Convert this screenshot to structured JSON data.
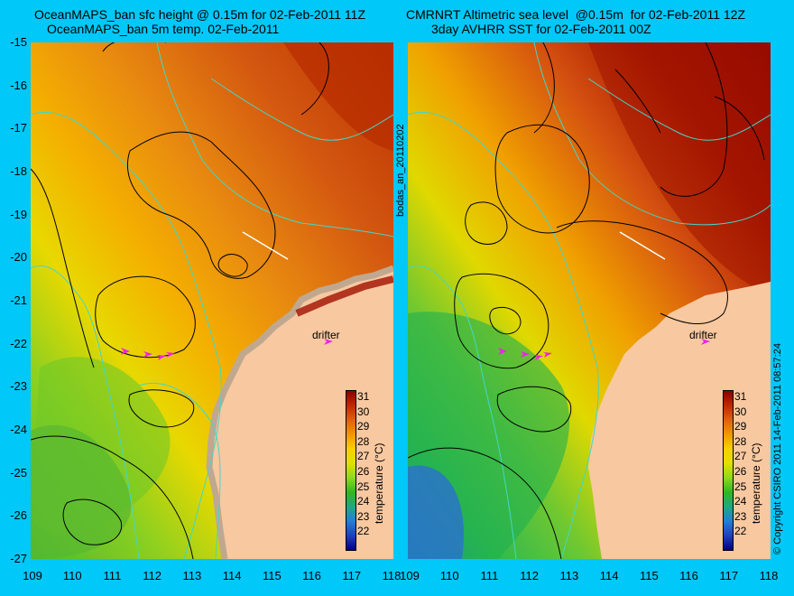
{
  "left_panel": {
    "title_line1": "OceanMAPS_ban sfc height @ 0.15m for 02-Feb-2011 11Z",
    "title_line2": "OceanMAPS_ban 5m temp. 02-Feb-2011",
    "drifter_label": "drifter"
  },
  "right_panel": {
    "title_line1": "CMRNRT Altimetric sea level  @0.15m  for 02-Feb-2011 12Z",
    "title_line2": "3day AVHRR SST for 02-Feb-2011 00Z",
    "drifter_label": "drifter"
  },
  "center_label": "bodas_an_20110202",
  "copyright": "© Copyright CSIRO 2011   14-Feb-2011 08:57:24",
  "axes": {
    "lat_ticks": [
      "-15",
      "-16",
      "-17",
      "-18",
      "-19",
      "-20",
      "-21",
      "-22",
      "-23",
      "-24",
      "-25",
      "-26",
      "-27"
    ],
    "lon_ticks_left": [
      "109",
      "110",
      "111",
      "112",
      "113",
      "114",
      "115",
      "116",
      "117",
      "118"
    ],
    "lon_ticks_right": [
      "109",
      "110",
      "111",
      "112",
      "113",
      "114",
      "115",
      "116",
      "117",
      "118"
    ]
  },
  "colorbar": {
    "label": "temperature (°C)",
    "ticks": [
      "31",
      "30",
      "29",
      "28",
      "27",
      "26",
      "25",
      "24",
      "23",
      "22"
    ],
    "colors": [
      "#8c0000",
      "#c02800",
      "#e06010",
      "#f09800",
      "#f8d000",
      "#e0e000",
      "#90d820",
      "#30b820",
      "#20a880",
      "#2080d8",
      "#2040c0",
      "#000080"
    ]
  },
  "colors": {
    "background": "#00c8f8",
    "land": "#f8c8a0",
    "coast_shelf": "#c0a890",
    "contour_ssh": "#000000",
    "contour_bathy": "#40d8c8",
    "drifter": "#f020f0"
  }
}
